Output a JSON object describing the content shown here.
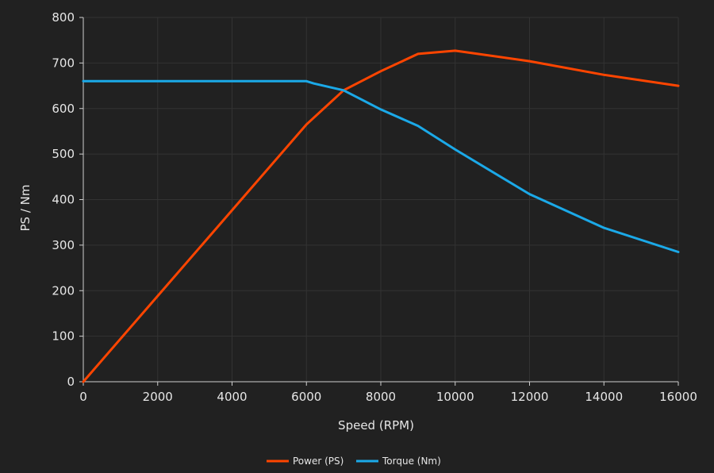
{
  "chart_data": {
    "type": "line",
    "title": "",
    "xlabel": "Speed (RPM)",
    "ylabel": "PS / Nm",
    "xlim": [
      0,
      16000
    ],
    "ylim": [
      0,
      800
    ],
    "x_ticks": [
      0,
      2000,
      4000,
      6000,
      8000,
      10000,
      12000,
      14000,
      16000
    ],
    "y_ticks": [
      0,
      100,
      200,
      300,
      400,
      500,
      600,
      700,
      800
    ],
    "grid": true,
    "legend_position": "bottom-center",
    "background_color": "#212121",
    "grid_color": "#333333",
    "series": [
      {
        "name": "Power (PS)",
        "color": "#ff4500",
        "x": [
          0,
          6000,
          7000,
          8000,
          9000,
          10000,
          12000,
          14000,
          16000
        ],
        "y": [
          0,
          565,
          640,
          682,
          720,
          727,
          704,
          674,
          650
        ]
      },
      {
        "name": "Torque (Nm)",
        "color": "#1ba9e8",
        "x": [
          0,
          6000,
          6200,
          7000,
          8000,
          9000,
          10000,
          12000,
          14000,
          16000
        ],
        "y": [
          660,
          660,
          655,
          640,
          598,
          562,
          510,
          412,
          338,
          285
        ]
      }
    ]
  }
}
